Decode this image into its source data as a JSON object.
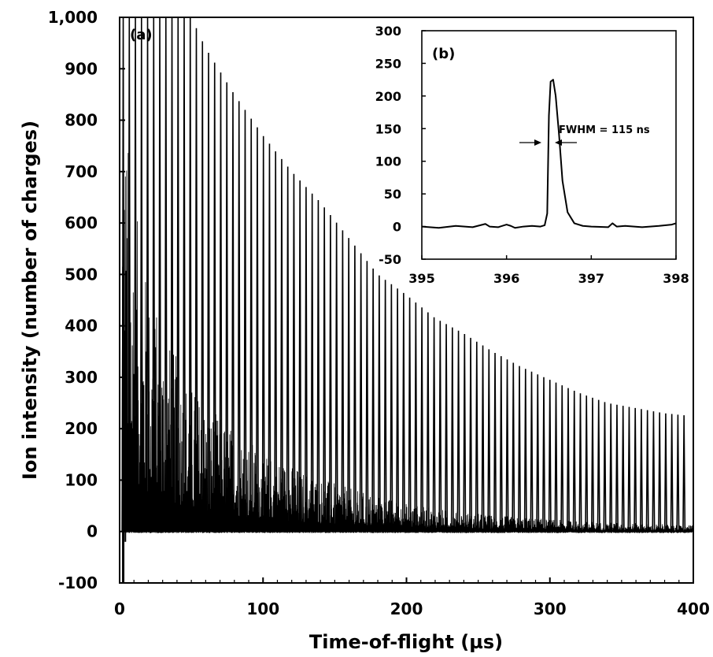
{
  "chart_data": [
    {
      "panel": "main",
      "type": "line",
      "panel_label": "(a)",
      "xlabel": "Time-of-flight (µs)",
      "ylabel": "Ion intensity (number of charges)",
      "xlim": [
        0,
        400
      ],
      "ylim": [
        -100,
        1000
      ],
      "xticks": [
        "0",
        "100",
        "200",
        "300",
        "400"
      ],
      "yticks": [
        "-100",
        "0",
        "100",
        "200",
        "300",
        "400",
        "500",
        "600",
        "700",
        "800",
        "900",
        "1,000"
      ],
      "grid": false,
      "series": [
        {
          "peak_train": {
            "first_peak_time": 2.5,
            "spacing": 4.25,
            "last_peak_time": 397.5,
            "envelope_peak_height": [
              [
                2.5,
                1000
              ],
              [
                50,
                1000
              ],
              [
                60,
                940
              ],
              [
                80,
                850
              ],
              [
                100,
                770
              ],
              [
                120,
                700
              ],
              [
                140,
                640
              ],
              [
                160,
                570
              ],
              [
                180,
                500
              ],
              [
                200,
                460
              ],
              [
                220,
                415
              ],
              [
                240,
                385
              ],
              [
                260,
                350
              ],
              [
                280,
                320
              ],
              [
                300,
                295
              ],
              [
                320,
                270
              ],
              [
                340,
                250
              ],
              [
                360,
                240
              ],
              [
                380,
                230
              ],
              [
                397,
                225
              ]
            ]
          },
          "background_envelope": [
            [
              2,
              1000
            ],
            [
              5,
              800
            ],
            [
              10,
              650
            ],
            [
              15,
              560
            ],
            [
              20,
              480
            ],
            [
              30,
              400
            ],
            [
              40,
              340
            ],
            [
              50,
              290
            ],
            [
              60,
              250
            ],
            [
              80,
              200
            ],
            [
              100,
              160
            ],
            [
              120,
              130
            ],
            [
              140,
              105
            ],
            [
              160,
              85
            ],
            [
              180,
              70
            ],
            [
              200,
              55
            ],
            [
              220,
              45
            ],
            [
              240,
              38
            ],
            [
              260,
              32
            ],
            [
              280,
              28
            ],
            [
              300,
              24
            ],
            [
              320,
              20
            ],
            [
              340,
              18
            ],
            [
              360,
              16
            ],
            [
              380,
              14
            ],
            [
              400,
              12
            ]
          ],
          "baseline": 0,
          "negative_dip": {
            "time": 2.5,
            "min": -100
          }
        }
      ]
    },
    {
      "panel": "inset",
      "type": "line",
      "panel_label": "(b)",
      "xlim": [
        395,
        398
      ],
      "ylim": [
        -50,
        300
      ],
      "xticks": [
        "395",
        "396",
        "397",
        "398"
      ],
      "yticks": [
        "-50",
        "0",
        "50",
        "100",
        "150",
        "200",
        "250",
        "300"
      ],
      "annotation": "FWHM = 115 ns",
      "series": [
        {
          "x": [
            395.0,
            395.2,
            395.4,
            395.6,
            395.75,
            395.8,
            395.9,
            396.0,
            396.05,
            396.1,
            396.2,
            396.3,
            396.4,
            396.45,
            396.48,
            396.5,
            396.52,
            396.55,
            396.58,
            396.62,
            396.66,
            396.72,
            396.8,
            396.9,
            397.0,
            397.2,
            397.25,
            397.3,
            397.4,
            397.6,
            397.8,
            397.95,
            398.0
          ],
          "y": [
            0,
            -2,
            1,
            -1,
            4,
            0,
            -1,
            3,
            1,
            -2,
            0,
            1,
            0,
            2,
            20,
            170,
            222,
            225,
            200,
            140,
            70,
            22,
            5,
            1,
            0,
            -1,
            5,
            0,
            1,
            -1,
            1,
            3,
            5
          ]
        }
      ]
    }
  ]
}
